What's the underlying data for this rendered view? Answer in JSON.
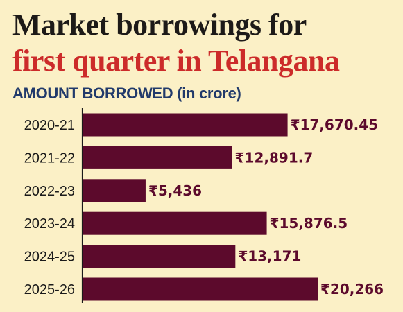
{
  "header": {
    "title_line1": "Market borrowings for",
    "title_line2": "first quarter in Telangana",
    "subtitle_main": "AMOUNT BORROWED",
    "subtitle_unit": "(in crore)"
  },
  "colors": {
    "background": "#fbf0c6",
    "title1": "#1d1a18",
    "title2": "#cc2b2a",
    "subtitle": "#213a6b",
    "bar": "#5c0a2c",
    "value_label": "#5c0a2c",
    "category_label": "#1a1a1a",
    "axis": "#1a1a1a"
  },
  "chart_data": {
    "type": "bar",
    "orientation": "horizontal",
    "categories": [
      "2020-21",
      "2021-22",
      "2022-23",
      "2023-24",
      "2024-25",
      "2025-26"
    ],
    "values": [
      17670.45,
      12891.7,
      5436,
      15876.5,
      13171,
      20266
    ],
    "value_labels": [
      "₹17,670.45",
      "₹12,891.7",
      "₹5,436",
      "₹15,876.5",
      "₹13,171",
      "₹20,266"
    ],
    "title": "Market borrowings for first quarter in Telangana",
    "xlabel": "",
    "ylabel": "",
    "grid": false,
    "legend": "none"
  }
}
